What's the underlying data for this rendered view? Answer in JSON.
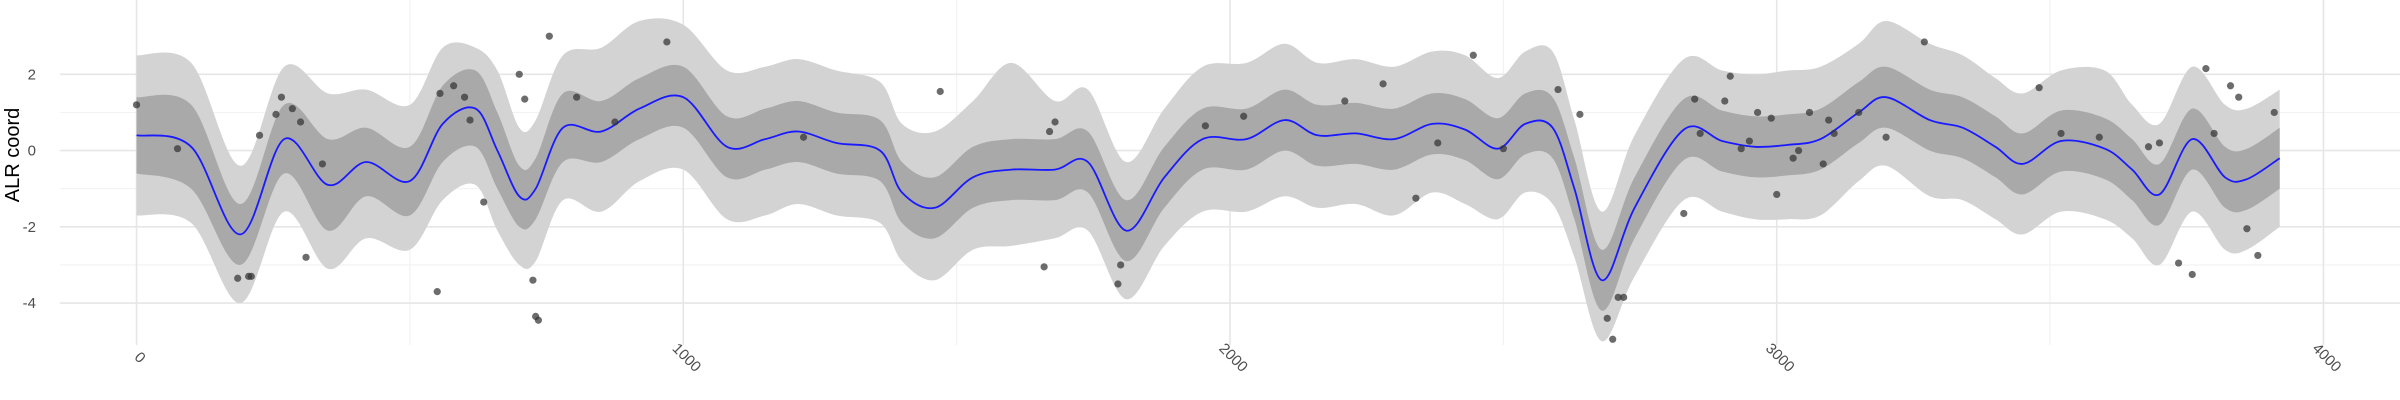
{
  "chart_data": {
    "type": "line",
    "title": "",
    "xlabel": "",
    "ylabel": "ALR coord",
    "xlim": [
      -140,
      4140
    ],
    "ylim": [
      -5.1,
      3.95
    ],
    "x_ticks": [
      0,
      1000,
      2000,
      3000,
      4000
    ],
    "x_tick_labels": [
      "0",
      "1000",
      "2000",
      "3000",
      "4000"
    ],
    "y_ticks": [
      -4,
      -2,
      0,
      2
    ],
    "y_tick_labels": [
      "-4",
      "-2",
      "0",
      "2"
    ],
    "grid": true,
    "legend": "none",
    "colors": {
      "mean_line": "#1a1aff",
      "inner_band": "#a9a9a9",
      "outer_band": "#d3d3d3",
      "points": "#333333",
      "grid_major": "#e6e6e6",
      "grid_minor": "#f2f2f2"
    },
    "mean_line": {
      "x": [
        0,
        100,
        190,
        270,
        350,
        420,
        500,
        560,
        620,
        660,
        700,
        730,
        780,
        850,
        920,
        1000,
        1080,
        1150,
        1210,
        1280,
        1360,
        1400,
        1460,
        1530,
        1600,
        1680,
        1740,
        1810,
        1880,
        1950,
        2030,
        2100,
        2160,
        2230,
        2300,
        2370,
        2430,
        2490,
        2540,
        2590,
        2630,
        2680,
        2740,
        2830,
        2900,
        2960,
        3020,
        3080,
        3150,
        3200,
        3280,
        3340,
        3400,
        3450,
        3520,
        3600,
        3650,
        3700,
        3760,
        3820,
        3860,
        3920
      ],
      "y": [
        0.4,
        0.1,
        -2.2,
        0.3,
        -0.9,
        -0.3,
        -0.8,
        0.7,
        1.1,
        0.0,
        -1.2,
        -1.0,
        0.6,
        0.5,
        1.1,
        1.4,
        0.1,
        0.3,
        0.5,
        0.2,
        0.0,
        -1.1,
        -1.5,
        -0.7,
        -0.5,
        -0.5,
        -0.3,
        -2.1,
        -0.7,
        0.3,
        0.3,
        0.8,
        0.4,
        0.45,
        0.3,
        0.7,
        0.55,
        0.05,
        0.7,
        0.6,
        -1.0,
        -3.4,
        -1.5,
        0.55,
        0.25,
        0.1,
        0.15,
        0.3,
        1.0,
        1.4,
        0.8,
        0.6,
        0.1,
        -0.35,
        0.25,
        0.05,
        -0.5,
        -1.15,
        0.3,
        -0.7,
        -0.75,
        -0.2
      ]
    },
    "inner_band": {
      "x": [
        0,
        100,
        190,
        270,
        350,
        420,
        500,
        560,
        620,
        660,
        700,
        730,
        780,
        850,
        920,
        1000,
        1080,
        1150,
        1210,
        1280,
        1360,
        1400,
        1460,
        1530,
        1600,
        1680,
        1740,
        1810,
        1880,
        1950,
        2030,
        2100,
        2160,
        2230,
        2300,
        2370,
        2430,
        2490,
        2540,
        2590,
        2630,
        2680,
        2740,
        2830,
        2900,
        2960,
        3020,
        3080,
        3150,
        3200,
        3280,
        3340,
        3400,
        3450,
        3520,
        3600,
        3650,
        3700,
        3760,
        3820,
        3860,
        3920
      ],
      "upper": [
        1.4,
        1.2,
        -1.4,
        1.2,
        0.3,
        0.6,
        0.1,
        1.7,
        2.1,
        1.0,
        -0.4,
        -0.2,
        1.5,
        1.3,
        1.9,
        2.2,
        0.9,
        1.1,
        1.3,
        1.0,
        0.8,
        -0.3,
        -0.7,
        0.1,
        0.3,
        0.3,
        0.5,
        -1.3,
        0.1,
        1.1,
        1.1,
        1.6,
        1.2,
        1.25,
        1.1,
        1.5,
        1.35,
        0.85,
        1.5,
        1.4,
        -0.2,
        -2.6,
        -0.7,
        1.35,
        1.05,
        0.9,
        0.95,
        1.1,
        1.8,
        2.2,
        1.6,
        1.4,
        0.9,
        0.45,
        1.05,
        0.85,
        0.3,
        -0.35,
        1.1,
        0.1,
        0.05,
        0.6
      ],
      "lower": [
        -0.6,
        -1.0,
        -3.0,
        -0.6,
        -2.1,
        -1.2,
        -1.7,
        -0.3,
        0.1,
        -1.0,
        -2.0,
        -1.8,
        -0.3,
        -0.3,
        0.3,
        0.6,
        -0.7,
        -0.5,
        -0.3,
        -0.6,
        -0.8,
        -1.9,
        -2.3,
        -1.5,
        -1.3,
        -1.3,
        -1.1,
        -2.9,
        -1.5,
        -0.5,
        -0.5,
        0.0,
        -0.4,
        -0.35,
        -0.5,
        -0.1,
        -0.25,
        -0.75,
        -0.1,
        -0.2,
        -1.8,
        -4.2,
        -2.3,
        -0.25,
        -0.55,
        -0.7,
        -0.65,
        -0.5,
        0.2,
        0.6,
        0.0,
        -0.2,
        -0.7,
        -1.15,
        -0.55,
        -0.75,
        -1.3,
        -1.95,
        -0.5,
        -1.5,
        -1.55,
        -1.0
      ]
    },
    "outer_band": {
      "x": [
        0,
        100,
        190,
        270,
        350,
        420,
        500,
        560,
        620,
        660,
        700,
        730,
        780,
        850,
        920,
        1000,
        1080,
        1150,
        1210,
        1280,
        1360,
        1400,
        1460,
        1530,
        1600,
        1680,
        1740,
        1810,
        1880,
        1950,
        2030,
        2100,
        2160,
        2230,
        2300,
        2370,
        2430,
        2490,
        2540,
        2590,
        2630,
        2680,
        2740,
        2830,
        2900,
        2960,
        3020,
        3080,
        3150,
        3200,
        3280,
        3340,
        3400,
        3450,
        3520,
        3600,
        3650,
        3700,
        3760,
        3820,
        3860,
        3920
      ],
      "upper": [
        2.5,
        2.3,
        -0.4,
        2.2,
        1.5,
        1.6,
        1.2,
        2.7,
        2.7,
        2.1,
        0.6,
        0.8,
        2.5,
        2.7,
        3.4,
        3.3,
        2.1,
        2.2,
        2.4,
        2.1,
        1.8,
        0.7,
        0.5,
        1.3,
        2.3,
        1.3,
        1.6,
        -0.3,
        1.1,
        2.2,
        2.3,
        2.8,
        2.3,
        2.4,
        2.2,
        2.6,
        2.5,
        1.9,
        2.6,
        2.6,
        0.8,
        -1.6,
        0.4,
        2.4,
        2.1,
        2.0,
        2.1,
        2.2,
        2.8,
        3.4,
        2.8,
        2.5,
        1.9,
        1.5,
        2.1,
        2.1,
        1.2,
        0.7,
        2.2,
        1.2,
        1.1,
        1.6
      ],
      "lower": [
        -1.7,
        -1.9,
        -4.0,
        -1.6,
        -3.1,
        -2.3,
        -2.6,
        -1.3,
        -0.9,
        -2.1,
        -3.0,
        -2.9,
        -1.3,
        -1.6,
        -0.8,
        -0.5,
        -1.8,
        -1.7,
        -1.4,
        -1.7,
        -1.9,
        -2.9,
        -3.4,
        -2.6,
        -2.5,
        -2.3,
        -2.1,
        -3.9,
        -2.5,
        -1.6,
        -1.6,
        -1.2,
        -1.5,
        -1.4,
        -1.7,
        -1.1,
        -1.4,
        -1.8,
        -1.1,
        -1.4,
        -2.8,
        -5.0,
        -3.3,
        -1.3,
        -1.6,
        -1.8,
        -1.8,
        -1.7,
        -0.8,
        -0.4,
        -1.2,
        -1.3,
        -1.8,
        -2.2,
        -1.6,
        -1.8,
        -2.3,
        -3.0,
        -1.6,
        -2.6,
        -2.6,
        -2.0
      ]
    },
    "points": {
      "x": [
        0,
        75,
        185,
        205,
        210,
        225,
        255,
        265,
        285,
        300,
        310,
        340,
        550,
        555,
        580,
        600,
        610,
        635,
        700,
        710,
        725,
        730,
        735,
        755,
        805,
        875,
        970,
        1220,
        1470,
        1660,
        1670,
        1680,
        1795,
        1800,
        1955,
        2025,
        2210,
        2280,
        2340,
        2380,
        2445,
        2500,
        2600,
        2640,
        2690,
        2700,
        2710,
        2720,
        2830,
        2850,
        2860,
        2905,
        2915,
        2935,
        2950,
        2965,
        2990,
        3000,
        3030,
        3040,
        3060,
        3085,
        3095,
        3105,
        3150,
        3200,
        3270,
        3480,
        3520,
        3590,
        3680,
        3700,
        3735,
        3760,
        3785,
        3800,
        3830,
        3845,
        3860,
        3880,
        3910
      ],
      "y": [
        1.2,
        0.05,
        -3.35,
        -3.3,
        -3.3,
        0.4,
        0.95,
        1.4,
        1.1,
        0.75,
        -2.8,
        -0.35,
        -3.7,
        1.5,
        1.7,
        1.4,
        0.8,
        -1.35,
        2.0,
        1.35,
        -3.4,
        -4.35,
        -4.45,
        3.0,
        1.4,
        0.75,
        2.85,
        0.35,
        1.55,
        -3.05,
        0.5,
        0.75,
        -3.5,
        -3.0,
        0.65,
        0.9,
        1.3,
        1.75,
        -1.25,
        0.2,
        2.5,
        0.05,
        1.6,
        0.95,
        -4.4,
        -4.95,
        -3.85,
        -3.85,
        -1.65,
        1.35,
        0.45,
        1.3,
        1.95,
        0.05,
        0.25,
        1.0,
        0.85,
        -1.15,
        -0.2,
        0.0,
        1.0,
        -0.35,
        0.8,
        0.45,
        1.0,
        0.35,
        2.85,
        1.65,
        0.45,
        0.35,
        0.1,
        0.2,
        -2.95,
        -3.25,
        2.15,
        0.45,
        1.7,
        1.4,
        -2.05,
        -2.75,
        1.0
      ]
    }
  }
}
